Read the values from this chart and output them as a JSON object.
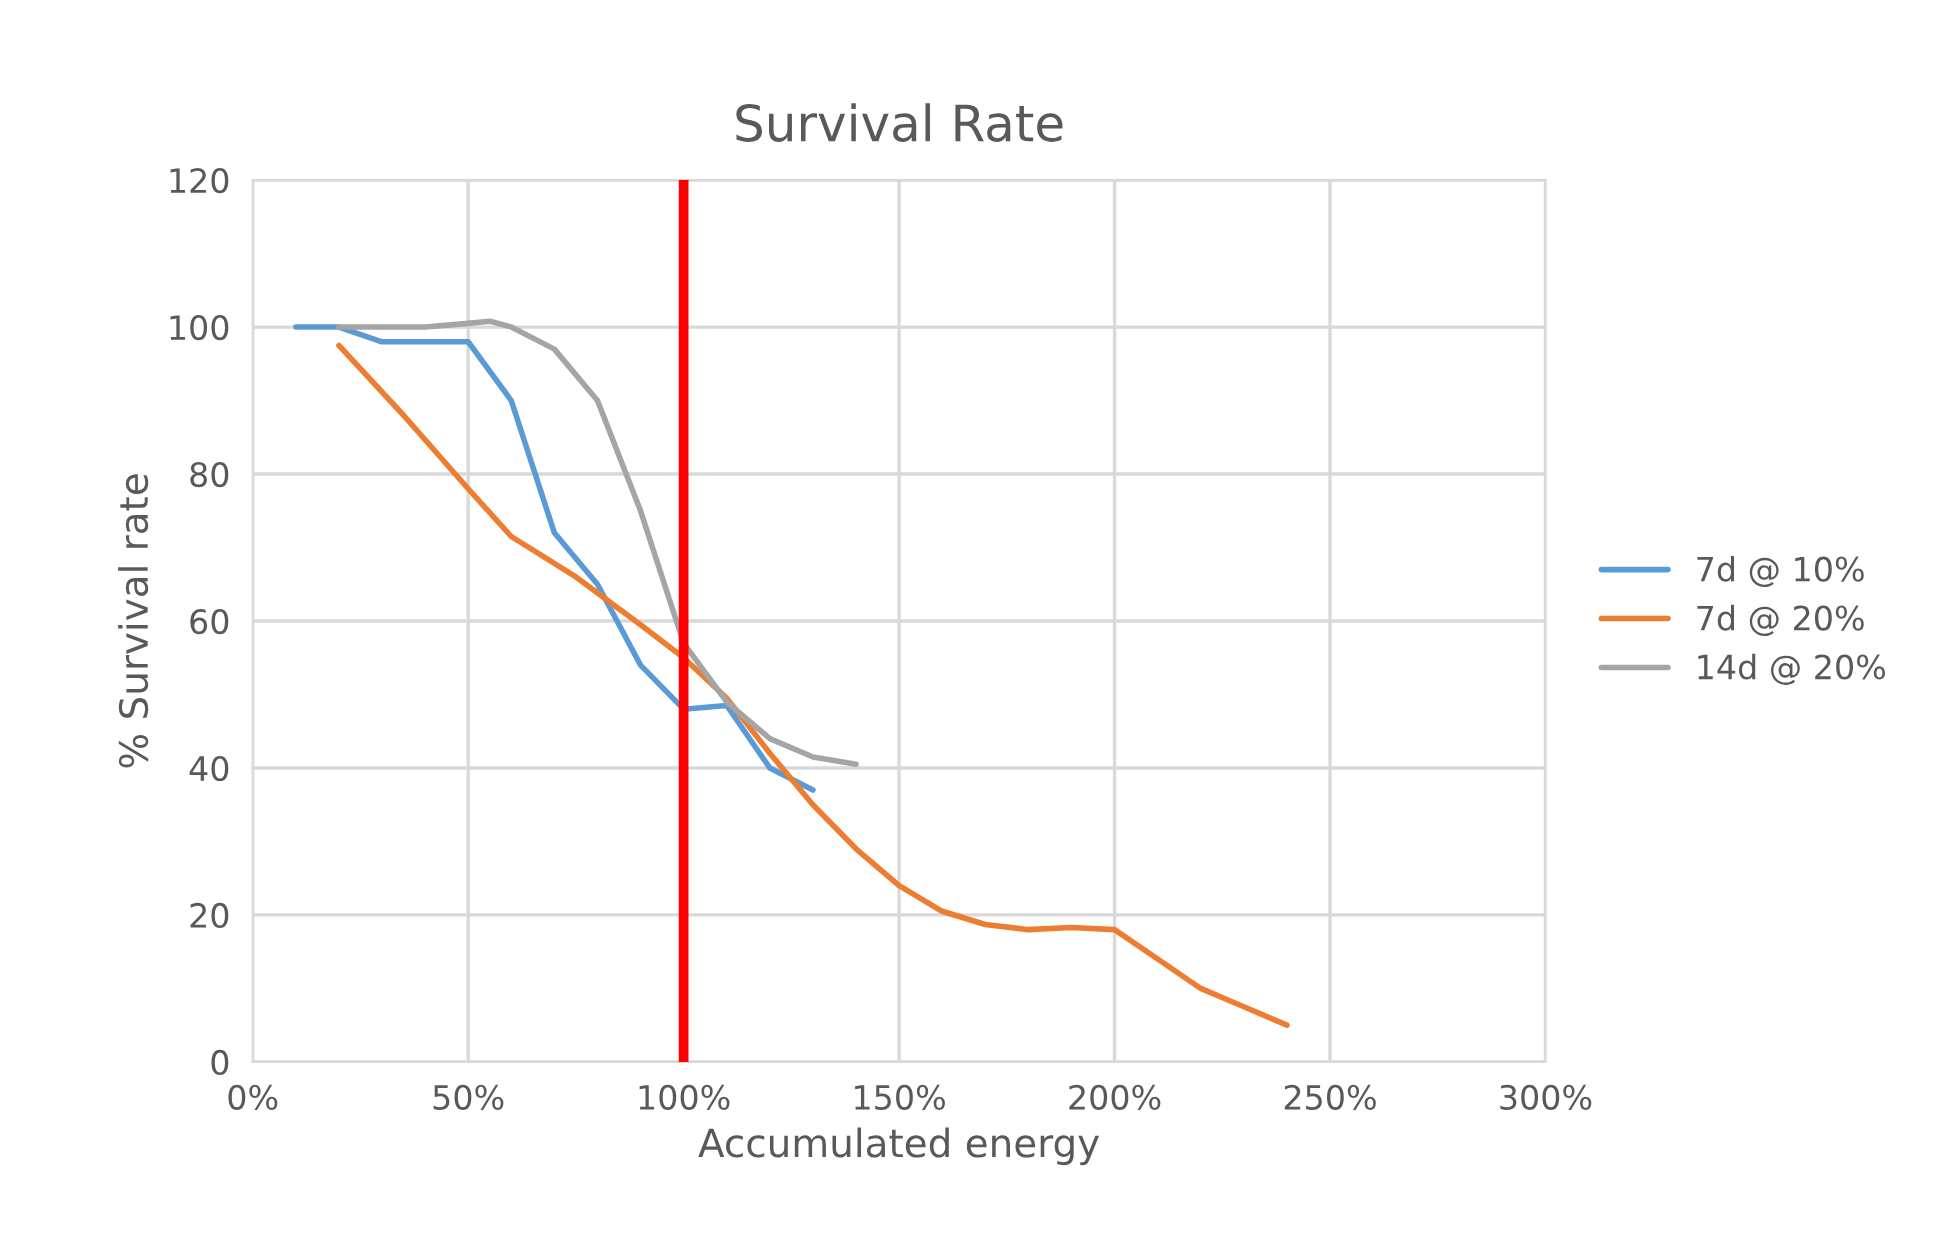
{
  "chart_data": {
    "type": "line",
    "title": "Survival Rate",
    "xlabel": "Accumulated energy",
    "ylabel": "% Survival rate",
    "xlim": [
      0,
      300
    ],
    "ylim": [
      0,
      120
    ],
    "xticks": [
      {
        "value": 0,
        "label": "0%"
      },
      {
        "value": 50,
        "label": "50%"
      },
      {
        "value": 100,
        "label": "100%"
      },
      {
        "value": 150,
        "label": "150%"
      },
      {
        "value": 200,
        "label": "200%"
      },
      {
        "value": 250,
        "label": "250%"
      },
      {
        "value": 300,
        "label": "300%"
      }
    ],
    "yticks": [
      0,
      20,
      40,
      60,
      80,
      100,
      120
    ],
    "grid": true,
    "legend": "right",
    "marker": "none",
    "line_style": "solid",
    "series": [
      {
        "name": "7d @ 10%",
        "color": "#5b9bd5",
        "x": [
          10,
          20,
          30,
          40,
          50,
          60,
          70,
          80,
          90,
          100,
          110,
          120,
          130
        ],
        "values": [
          100,
          100,
          98,
          98,
          98,
          90,
          72,
          65,
          54,
          48,
          48.5,
          40,
          37
        ]
      },
      {
        "name": "7d @ 20%",
        "color": "#ed7d31",
        "x": [
          20,
          35,
          50,
          60,
          75,
          90,
          100,
          110,
          120,
          130,
          140,
          150,
          160,
          170,
          180,
          190,
          200,
          210,
          220,
          230,
          240
        ],
        "values": [
          97.5,
          88,
          78,
          71.5,
          66,
          59.5,
          55,
          49.5,
          42,
          35,
          29,
          24,
          20.5,
          18.7,
          18,
          18.3,
          18,
          14,
          10,
          7.5,
          5
        ]
      },
      {
        "name": "14d @ 20%",
        "color": "#a5a5a5",
        "x": [
          20,
          30,
          40,
          50,
          55,
          60,
          70,
          80,
          90,
          100,
          110,
          120,
          130,
          140
        ],
        "values": [
          100,
          100,
          100,
          100.5,
          100.8,
          100,
          97,
          90,
          75,
          57,
          49,
          44,
          41.5,
          40.5
        ]
      }
    ],
    "ref_lines": [
      {
        "axis": "x",
        "value": 100,
        "color": "#ff0000",
        "line_style": "solid"
      }
    ]
  }
}
